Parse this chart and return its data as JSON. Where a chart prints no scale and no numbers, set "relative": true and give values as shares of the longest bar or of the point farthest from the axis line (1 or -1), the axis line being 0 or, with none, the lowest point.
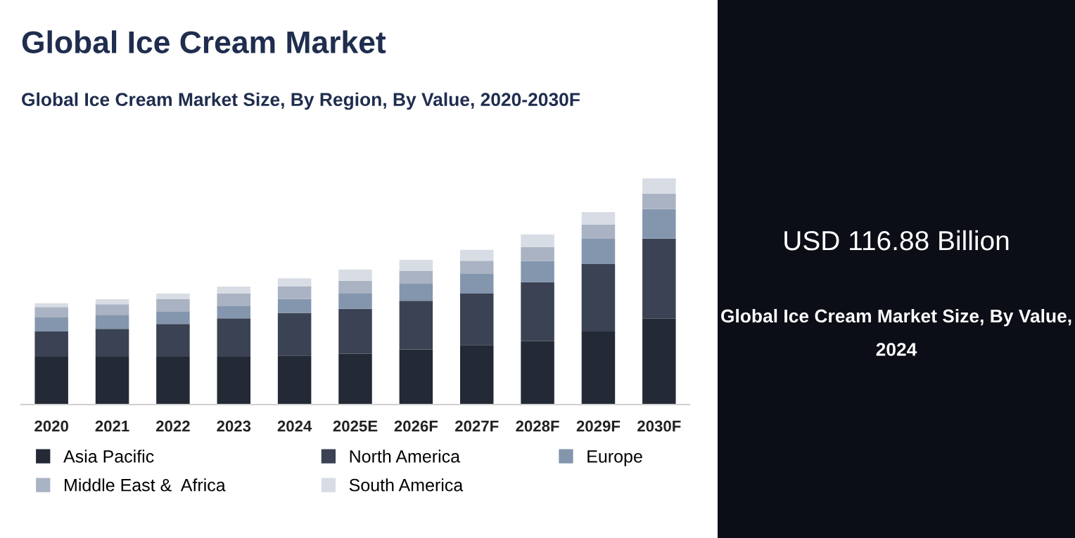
{
  "chart_data": [
    {
      "type": "bar",
      "title": "Global Ice Cream Market",
      "subtitle": "Global Ice Cream Market Size, By Region, By Value, 2020-2030F",
      "stacked": true,
      "relative": true,
      "legend": "bottom",
      "grid": false,
      "categories": [
        "2020",
        "2021",
        "2022",
        "2023",
        "2024",
        "2025E",
        "2026F",
        "2027F",
        "2028F",
        "2029F",
        "2030F"
      ],
      "series": [
        {
          "name": "Asia Pacific",
          "color": "#232a35",
          "values": [
            0.211,
            0.211,
            0.211,
            0.211,
            0.217,
            0.224,
            0.244,
            0.263,
            0.28,
            0.323,
            0.38
          ]
        },
        {
          "name": "North America",
          "color": "#3a4253",
          "values": [
            0.112,
            0.124,
            0.145,
            0.17,
            0.188,
            0.199,
            0.215,
            0.228,
            0.261,
            0.298,
            0.354
          ]
        },
        {
          "name": "Europe",
          "color": "#8496ae",
          "values": [
            0.062,
            0.062,
            0.056,
            0.056,
            0.062,
            0.07,
            0.075,
            0.087,
            0.093,
            0.112,
            0.13
          ]
        },
        {
          "name": "Middle East &  Africa",
          "color": "#a9b3c3",
          "values": [
            0.046,
            0.046,
            0.054,
            0.054,
            0.056,
            0.054,
            0.058,
            0.058,
            0.062,
            0.062,
            0.068
          ]
        },
        {
          "name": "South America",
          "color": "#d8dce4",
          "values": [
            0.017,
            0.023,
            0.025,
            0.031,
            0.035,
            0.05,
            0.048,
            0.048,
            0.056,
            0.056,
            0.068
          ]
        }
      ]
    },
    {
      "type": "other",
      "title": "USD 116.88 Billion",
      "subtitle": "Global Ice Cream Market Size, By Value, 2024"
    }
  ]
}
